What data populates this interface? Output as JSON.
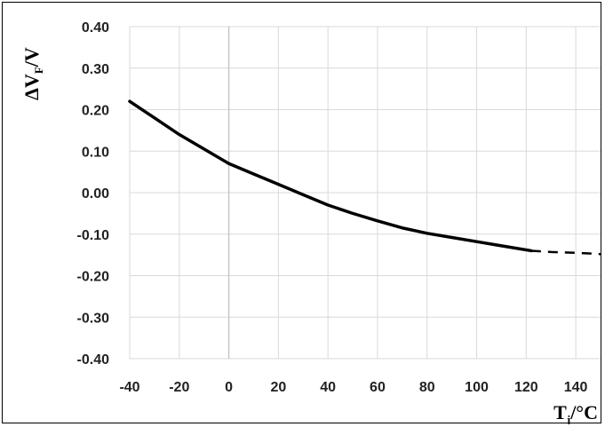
{
  "chart_data": {
    "type": "line",
    "title": "",
    "xlabel": "T",
    "xlabel_sub": "j",
    "xlabel_unit": "/°C",
    "ylabel_prefix": "ΔV",
    "ylabel_sub": "F",
    "ylabel_unit": "/V",
    "xlim": [
      -40,
      150
    ],
    "ylim": [
      -0.4,
      0.4
    ],
    "x_ticks": [
      -40,
      -20,
      0,
      20,
      40,
      60,
      80,
      100,
      120,
      140
    ],
    "x_tick_labels": [
      "-40",
      "-20",
      "0",
      "20",
      "40",
      "60",
      "80",
      "100",
      "120",
      "140"
    ],
    "y_ticks": [
      0.4,
      0.3,
      0.2,
      0.1,
      0.0,
      -0.1,
      -0.2,
      -0.3,
      -0.4
    ],
    "y_tick_labels": [
      "0.40",
      "0.30",
      "0.20",
      "0.10",
      "0.00",
      "-0.10",
      "-0.20",
      "-0.30",
      "-0.40"
    ],
    "grid": true,
    "line_color": "#000000",
    "series": [
      {
        "style": "solid",
        "x": [
          -40,
          -30,
          -20,
          -10,
          0,
          10,
          20,
          30,
          40,
          50,
          60,
          70,
          80,
          90,
          100,
          110,
          122
        ],
        "y": [
          0.22,
          0.18,
          0.14,
          0.105,
          0.07,
          0.045,
          0.02,
          -0.005,
          -0.03,
          -0.05,
          -0.068,
          -0.085,
          -0.098,
          -0.108,
          -0.118,
          -0.128,
          -0.14
        ]
      },
      {
        "style": "dashed",
        "x": [
          122,
          130,
          140,
          150
        ],
        "y": [
          -0.14,
          -0.143,
          -0.145,
          -0.148
        ]
      }
    ]
  }
}
